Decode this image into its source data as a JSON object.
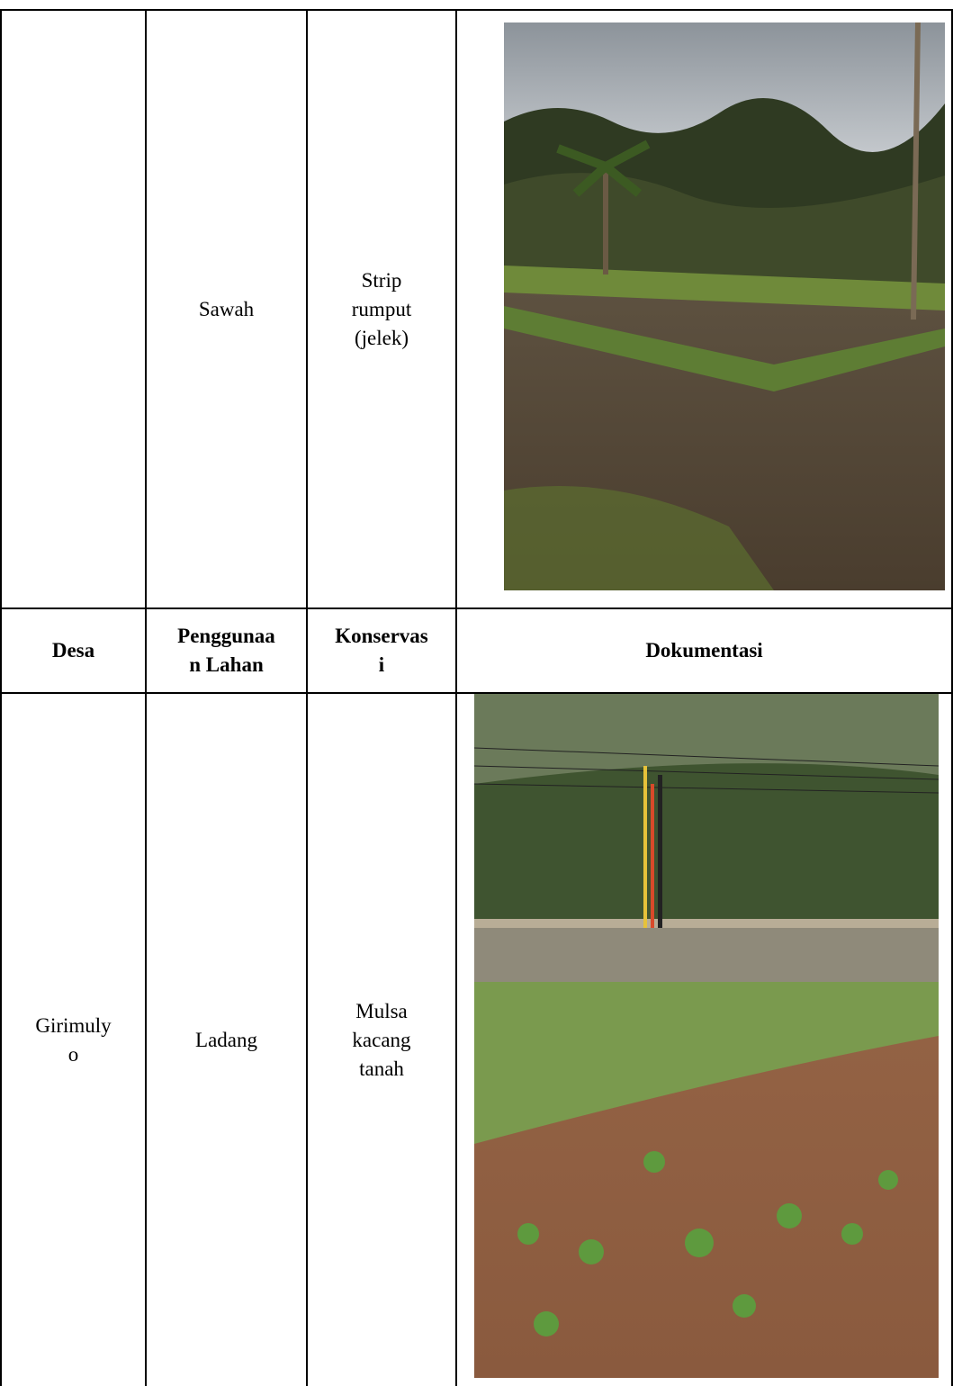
{
  "table": {
    "rows": [
      {
        "desa": [],
        "lahan": [
          "Sawah"
        ],
        "konservasi": [
          "Strip",
          "rumput",
          "(jelek)"
        ]
      },
      {
        "desa": [
          "Desa"
        ],
        "lahan": [
          "Penggunaa",
          "n Lahan"
        ],
        "konservasi": [
          "Konservas",
          "i"
        ],
        "dokumentasi": [
          "Dokumentasi"
        ]
      },
      {
        "desa": [
          "Girimuly",
          "o"
        ],
        "lahan": [
          "Ladang"
        ],
        "konservasi": [
          "Mulsa",
          "kacang",
          "tanah"
        ]
      }
    ]
  }
}
